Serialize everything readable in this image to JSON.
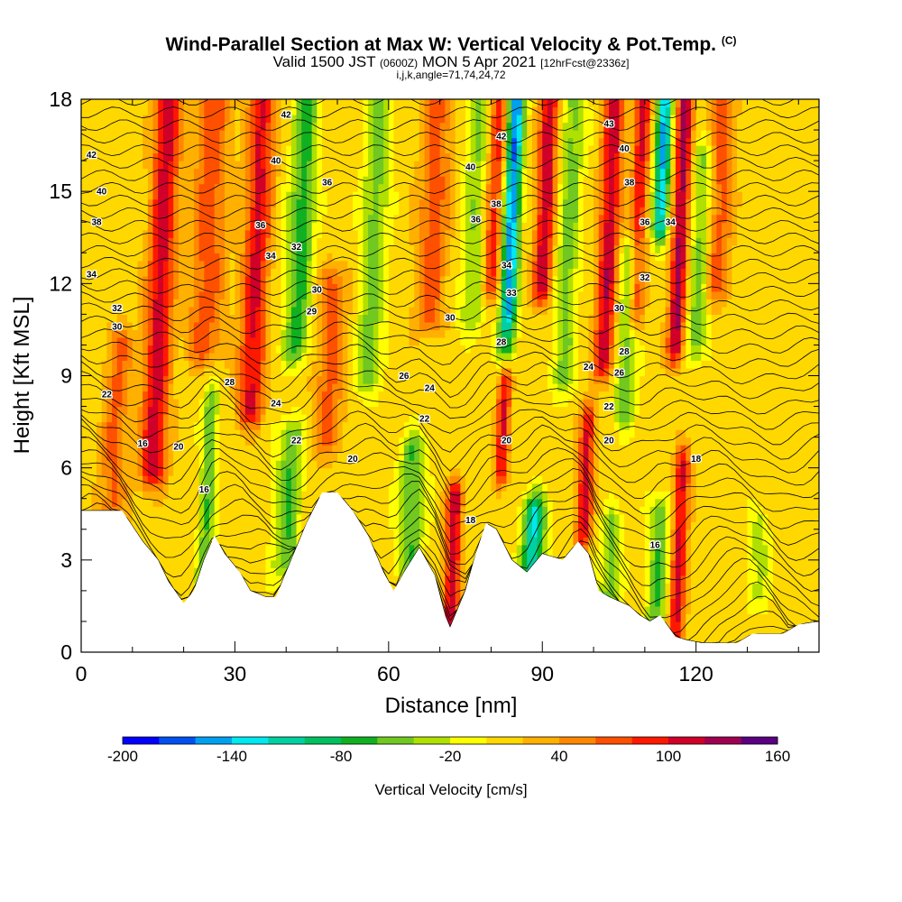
{
  "header": {
    "title": "Wind-Parallel Section at Max W: Vertical Velocity & Pot.Temp.",
    "title_mark": "(C)",
    "valid_prefix": "Valid 1500 JST",
    "valid_zulu": "(0600Z)",
    "valid_date": "MON 5 Apr 2021",
    "forecast": "[12hrFcst@2336z]",
    "indices": "i,j,k,angle=71,74,24,72"
  },
  "chart_data": {
    "type": "heatmap",
    "xlabel": "Distance [nm]",
    "ylabel": "Height [Kft MSL]",
    "xlim": [
      0,
      144
    ],
    "ylim": [
      0,
      18
    ],
    "x_ticks": [
      0,
      30,
      60,
      90,
      120
    ],
    "y_ticks": [
      0,
      3,
      6,
      9,
      12,
      15,
      18
    ],
    "x_minor_step": 10,
    "y_minor_step": 1,
    "colorbar": {
      "label": "Vertical Velocity [cm/s]",
      "tick_labels": [
        "-200",
        "-140",
        "-80",
        "-20",
        "40",
        "100",
        "160"
      ],
      "bins": [
        -200,
        -180,
        -160,
        -140,
        -120,
        -100,
        -80,
        -60,
        -40,
        -20,
        0,
        20,
        40,
        60,
        80,
        100,
        120,
        140,
        160
      ],
      "colors": [
        "#0000ff",
        "#0050f0",
        "#00a0f0",
        "#00e8f0",
        "#00d0a0",
        "#00c060",
        "#10b020",
        "#70c820",
        "#b0e000",
        "#ffff00",
        "#ffd800",
        "#ffb000",
        "#ff8800",
        "#ff5000",
        "#ff1800",
        "#d00028",
        "#a00050",
        "#5a0080"
      ]
    },
    "terrain_kft": [
      [
        0,
        4.6
      ],
      [
        8,
        4.6
      ],
      [
        12,
        3.6
      ],
      [
        15,
        3.0
      ],
      [
        17,
        2.3
      ],
      [
        20,
        1.6
      ],
      [
        22,
        2.0
      ],
      [
        24,
        3.0
      ],
      [
        26,
        3.8
      ],
      [
        28,
        3.2
      ],
      [
        31,
        2.6
      ],
      [
        33,
        2.0
      ],
      [
        36,
        1.8
      ],
      [
        38,
        1.8
      ],
      [
        41,
        3.0
      ],
      [
        44,
        4.2
      ],
      [
        47,
        5.2
      ],
      [
        50,
        5.2
      ],
      [
        53,
        4.6
      ],
      [
        56,
        3.8
      ],
      [
        59,
        2.6
      ],
      [
        61,
        2.0
      ],
      [
        63,
        2.6
      ],
      [
        66,
        3.4
      ],
      [
        69,
        2.5
      ],
      [
        71,
        1.2
      ],
      [
        72,
        0.8
      ],
      [
        75,
        2.0
      ],
      [
        77,
        3.2
      ],
      [
        79,
        4.2
      ],
      [
        81,
        4.0
      ],
      [
        84,
        3.0
      ],
      [
        87,
        2.6
      ],
      [
        90,
        3.2
      ],
      [
        94,
        3.0
      ],
      [
        97,
        3.6
      ],
      [
        99,
        3.2
      ],
      [
        101,
        2.0
      ],
      [
        103,
        1.8
      ],
      [
        107,
        1.5
      ],
      [
        109,
        1.2
      ],
      [
        111,
        1.0
      ],
      [
        113,
        1.2
      ],
      [
        116,
        0.5
      ],
      [
        118,
        0.4
      ],
      [
        121,
        0.3
      ],
      [
        124,
        0.3
      ],
      [
        128,
        0.3
      ],
      [
        131,
        0.6
      ],
      [
        134,
        0.6
      ],
      [
        137,
        0.6
      ],
      [
        140,
        0.9
      ],
      [
        144,
        1.0
      ]
    ],
    "w_features": [
      {
        "x": 14,
        "z_top": 18,
        "z_bot": 6,
        "value": 105,
        "width": 2.5
      },
      {
        "x": 6,
        "z_top": 10,
        "z_bot": 4.5,
        "value": 55,
        "width": 2.5
      },
      {
        "x": 24,
        "z_top": 18,
        "z_bot": 10,
        "value": 60,
        "width": 3.5
      },
      {
        "x": 24,
        "z_top": 8,
        "z_bot": 2.5,
        "value": -70,
        "width": 1.5
      },
      {
        "x": 33,
        "z_top": 18,
        "z_bot": 8,
        "value": 95,
        "width": 2.5
      },
      {
        "x": 42,
        "z_top": 18,
        "z_bot": 10,
        "value": -80,
        "width": 2.5
      },
      {
        "x": 40,
        "z_top": 7,
        "z_bot": 3,
        "value": -70,
        "width": 2.5
      },
      {
        "x": 48,
        "z_top": 12,
        "z_bot": 7,
        "value": 55,
        "width": 3
      },
      {
        "x": 56,
        "z_top": 18,
        "z_bot": 9,
        "value": -60,
        "width": 2.5
      },
      {
        "x": 64,
        "z_top": 6.5,
        "z_bot": 3,
        "value": -70,
        "width": 2.5
      },
      {
        "x": 68,
        "z_top": 18,
        "z_bot": 11,
        "value": 60,
        "width": 3
      },
      {
        "x": 72,
        "z_top": 5,
        "z_bot": 1,
        "value": 110,
        "width": 1.5
      },
      {
        "x": 76,
        "z_top": 18,
        "z_bot": 11,
        "value": -50,
        "width": 2.5
      },
      {
        "x": 80,
        "z_top": 18,
        "z_bot": 12,
        "value": 80,
        "width": 1.8
      },
      {
        "x": 83,
        "z_top": 18,
        "z_bot": 10,
        "value": -170,
        "width": 1.6
      },
      {
        "x": 82,
        "z_top": 10,
        "z_bot": 6,
        "value": 90,
        "width": 1.3
      },
      {
        "x": 88,
        "z_top": 4.5,
        "z_bot": 2.6,
        "value": -130,
        "width": 2.2
      },
      {
        "x": 90,
        "z_top": 18,
        "z_bot": 12,
        "value": 110,
        "width": 1.8
      },
      {
        "x": 94,
        "z_top": 18,
        "z_bot": 9,
        "value": -60,
        "width": 2.2
      },
      {
        "x": 98,
        "z_top": 7.5,
        "z_bot": 4,
        "value": 100,
        "width": 1.5
      },
      {
        "x": 102,
        "z_top": 18,
        "z_bot": 9.5,
        "value": 105,
        "width": 2
      },
      {
        "x": 106,
        "z_top": 13,
        "z_bot": 8,
        "value": -70,
        "width": 2
      },
      {
        "x": 108,
        "z_top": 18,
        "z_bot": 11,
        "value": 90,
        "width": 1.6
      },
      {
        "x": 113,
        "z_top": 18,
        "z_bot": 14,
        "value": -150,
        "width": 1.5
      },
      {
        "x": 116,
        "z_top": 18,
        "z_bot": 10,
        "value": 120,
        "width": 1.6
      },
      {
        "x": 120,
        "z_top": 16,
        "z_bot": 10,
        "value": -60,
        "width": 2
      },
      {
        "x": 124,
        "z_top": 18,
        "z_bot": 12,
        "value": 60,
        "width": 2.5
      },
      {
        "x": 116,
        "z_top": 6,
        "z_bot": 0.5,
        "value": 100,
        "width": 1.5
      },
      {
        "x": 112,
        "z_top": 4.5,
        "z_bot": 0.5,
        "value": -70,
        "width": 2
      },
      {
        "x": 103,
        "z_top": 4,
        "z_bot": 1.8,
        "value": -60,
        "width": 2
      },
      {
        "x": 132,
        "z_top": 4,
        "z_bot": 2,
        "value": -40,
        "width": 2
      }
    ],
    "theta_contours": [
      {
        "level": 16,
        "label": "16",
        "x": 12,
        "y": 6.8
      },
      {
        "level": 16,
        "label": "16",
        "x": 24,
        "y": 5.3
      },
      {
        "level": 16,
        "label": "16",
        "x": 112,
        "y": 3.5
      },
      {
        "level": 18,
        "label": "18",
        "x": 76,
        "y": 4.3
      },
      {
        "level": 18,
        "label": "18",
        "x": 120,
        "y": 6.3
      },
      {
        "level": 20,
        "label": "20",
        "x": 19,
        "y": 6.7
      },
      {
        "level": 20,
        "label": "20",
        "x": 53,
        "y": 6.3
      },
      {
        "level": 20,
        "label": "20",
        "x": 83,
        "y": 6.9
      },
      {
        "level": 20,
        "label": "20",
        "x": 103,
        "y": 6.9
      },
      {
        "level": 22,
        "label": "22",
        "x": 5,
        "y": 8.4
      },
      {
        "level": 22,
        "label": "22",
        "x": 42,
        "y": 6.9
      },
      {
        "level": 22,
        "label": "22",
        "x": 67,
        "y": 7.6
      },
      {
        "level": 22,
        "label": "22",
        "x": 103,
        "y": 8.0
      },
      {
        "level": 24,
        "label": "24",
        "x": 38,
        "y": 8.1
      },
      {
        "level": 24,
        "label": "24",
        "x": 68,
        "y": 8.6
      },
      {
        "level": 24,
        "label": "24",
        "x": 99,
        "y": 9.3
      },
      {
        "level": 26,
        "label": "26",
        "x": 63,
        "y": 9.0
      },
      {
        "level": 26,
        "label": "26",
        "x": 105,
        "y": 9.1
      },
      {
        "level": 28,
        "label": "28",
        "x": 29,
        "y": 8.8
      },
      {
        "level": 28,
        "label": "28",
        "x": 82,
        "y": 10.1
      },
      {
        "level": 28,
        "label": "28",
        "x": 106,
        "y": 9.8
      },
      {
        "level": 29,
        "label": "29",
        "x": 45,
        "y": 11.1
      },
      {
        "level": 30,
        "label": "30",
        "x": 7,
        "y": 10.6
      },
      {
        "level": 30,
        "label": "30",
        "x": 46,
        "y": 11.8
      },
      {
        "level": 30,
        "label": "30",
        "x": 72,
        "y": 10.9
      },
      {
        "level": 30,
        "label": "30",
        "x": 105,
        "y": 11.2
      },
      {
        "level": 32,
        "label": "32",
        "x": 7,
        "y": 11.2
      },
      {
        "level": 32,
        "label": "32",
        "x": 42,
        "y": 13.2
      },
      {
        "level": 32,
        "label": "32",
        "x": 110,
        "y": 12.2
      },
      {
        "level": 33,
        "label": "33",
        "x": 84,
        "y": 11.7
      },
      {
        "level": 34,
        "label": "34",
        "x": 2,
        "y": 12.3
      },
      {
        "level": 34,
        "label": "34",
        "x": 37,
        "y": 12.9
      },
      {
        "level": 34,
        "label": "34",
        "x": 83,
        "y": 12.6
      },
      {
        "level": 34,
        "label": "34",
        "x": 115,
        "y": 14.0
      },
      {
        "level": 36,
        "label": "36",
        "x": 35,
        "y": 13.9
      },
      {
        "level": 36,
        "label": "36",
        "x": 77,
        "y": 14.1
      },
      {
        "level": 36,
        "label": "36",
        "x": 110,
        "y": 14.0
      },
      {
        "level": 36,
        "label": "36",
        "x": 48,
        "y": 15.3
      },
      {
        "level": 38,
        "label": "38",
        "x": 3,
        "y": 14.0
      },
      {
        "level": 38,
        "label": "38",
        "x": 81,
        "y": 14.6
      },
      {
        "level": 38,
        "label": "38",
        "x": 107,
        "y": 15.3
      },
      {
        "level": 40,
        "label": "40",
        "x": 4,
        "y": 15.0
      },
      {
        "level": 40,
        "label": "40",
        "x": 38,
        "y": 16.0
      },
      {
        "level": 40,
        "label": "40",
        "x": 76,
        "y": 15.8
      },
      {
        "level": 40,
        "label": "40",
        "x": 106,
        "y": 16.4
      },
      {
        "level": 42,
        "label": "42",
        "x": 2,
        "y": 16.2
      },
      {
        "level": 42,
        "label": "42",
        "x": 40,
        "y": 17.5
      },
      {
        "level": 42,
        "label": "42",
        "x": 82,
        "y": 16.8
      },
      {
        "level": 43,
        "label": "43",
        "x": 103,
        "y": 17.2
      }
    ]
  }
}
